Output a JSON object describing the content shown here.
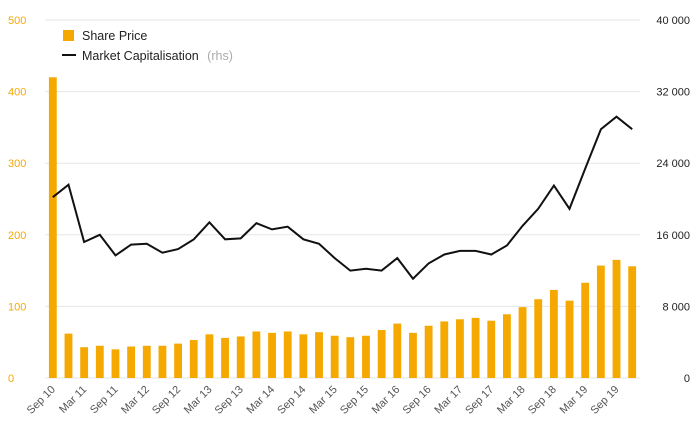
{
  "chart_data": {
    "type": "bar+line",
    "title": "",
    "x_labels": [
      "Sep 10",
      "",
      "Mar 11",
      "",
      "Sep 11",
      "",
      "Mar 12",
      "",
      "Sep 12",
      "",
      "Mar 13",
      "",
      "Sep 13",
      "",
      "Mar 14",
      "",
      "Sep 14",
      "",
      "Mar 15",
      "",
      "Sep 15",
      "",
      "Mar 16",
      "",
      "Sep 16",
      "",
      "Mar 17",
      "",
      "Sep 17",
      "",
      "Mar 18",
      "",
      "Sep 18",
      "",
      "Mar 19",
      "",
      "Sep 19",
      ""
    ],
    "series": [
      {
        "name": "Share Price",
        "type": "bar",
        "axis": "left",
        "color": "#f5a800",
        "values": [
          420,
          62,
          43,
          45,
          40,
          44,
          45,
          45,
          48,
          53,
          61,
          56,
          58,
          65,
          63,
          65,
          61,
          64,
          59,
          57,
          59,
          67,
          76,
          63,
          73,
          79,
          82,
          84,
          80,
          89,
          99,
          110,
          123,
          108,
          133,
          157,
          165,
          156
        ]
      },
      {
        "name": "Market Capitalisation",
        "name_note": "(rhs)",
        "type": "line",
        "axis": "right",
        "color": "#111111",
        "values": [
          20200,
          21600,
          15200,
          16000,
          13700,
          14900,
          15000,
          14000,
          14400,
          15500,
          17400,
          15500,
          15600,
          17300,
          16600,
          16900,
          15500,
          15000,
          13400,
          12000,
          12200,
          12000,
          13400,
          11100,
          12800,
          13800,
          14200,
          14200,
          13800,
          14800,
          17000,
          18900,
          21500,
          18900,
          23400,
          27800,
          29200,
          27800
        ]
      }
    ],
    "y_left": {
      "min": 0,
      "max": 500,
      "ticks": [
        "0",
        "100",
        "200",
        "300",
        "400",
        "500"
      ],
      "color": "#f5a800"
    },
    "y_right": {
      "min": 0,
      "max": 40000,
      "ticks": [
        "0",
        "8 000",
        "16 000",
        "24 000",
        "32 000",
        "40 000"
      ],
      "color": "#222222"
    },
    "grid": true,
    "legend_position": "top-left"
  }
}
